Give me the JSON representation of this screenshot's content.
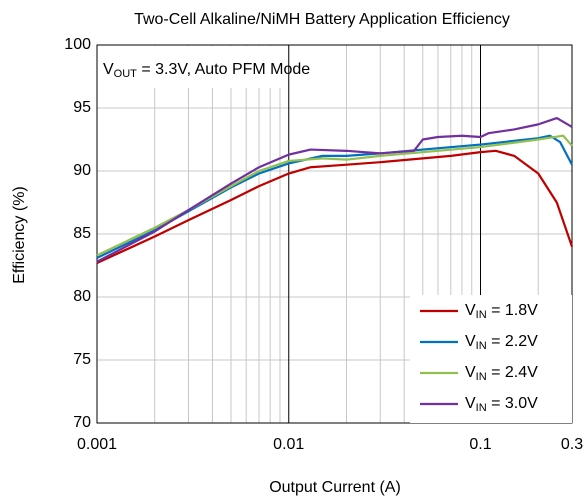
{
  "chart_data": {
    "type": "line",
    "title": "Two-Cell Alkaline/NiMH Battery Application Efficiency",
    "annotation": [
      {
        "text": "V"
      },
      {
        "text": "OUT",
        "sub": true
      },
      {
        "text": " = 3.3V, Auto PFM Mode"
      }
    ],
    "xlabel": "Output Current (A)",
    "ylabel": "Efficiency (%)",
    "xscale": "log",
    "xlim": [
      0.001,
      0.3
    ],
    "xticks": [
      0.001,
      0.01,
      0.1,
      0.3
    ],
    "ylim": [
      70,
      100
    ],
    "yticks": [
      70,
      75,
      80,
      85,
      90,
      95,
      100
    ],
    "grid": true,
    "legend": "lower right",
    "series": [
      {
        "name": [
          {
            "text": "V"
          },
          {
            "text": "IN",
            "sub": true
          },
          {
            "text": " = 1.8V"
          }
        ],
        "color": "#c00000",
        "x": [
          0.001,
          0.002,
          0.003,
          0.005,
          0.007,
          0.01,
          0.013,
          0.02,
          0.03,
          0.05,
          0.07,
          0.1,
          0.12,
          0.15,
          0.2,
          0.25,
          0.3
        ],
        "values": [
          82.7,
          84.8,
          86.1,
          87.7,
          88.8,
          89.8,
          90.3,
          90.5,
          90.7,
          91.0,
          91.2,
          91.5,
          91.6,
          91.2,
          89.8,
          87.5,
          84.0
        ]
      },
      {
        "name": [
          {
            "text": "V"
          },
          {
            "text": "IN",
            "sub": true
          },
          {
            "text": " = 2.2V"
          }
        ],
        "color": "#0070c0",
        "x": [
          0.001,
          0.002,
          0.003,
          0.005,
          0.007,
          0.01,
          0.015,
          0.02,
          0.03,
          0.05,
          0.1,
          0.2,
          0.23,
          0.26,
          0.3
        ],
        "values": [
          83.1,
          85.3,
          86.8,
          88.7,
          89.8,
          90.6,
          91.2,
          91.2,
          91.4,
          91.7,
          92.1,
          92.6,
          92.8,
          92.3,
          90.5
        ]
      },
      {
        "name": [
          {
            "text": "V"
          },
          {
            "text": "IN",
            "sub": true
          },
          {
            "text": " = 2.4V"
          }
        ],
        "color": "#92c050",
        "x": [
          0.001,
          0.002,
          0.003,
          0.005,
          0.007,
          0.01,
          0.015,
          0.02,
          0.03,
          0.05,
          0.1,
          0.2,
          0.27,
          0.3
        ],
        "values": [
          83.3,
          85.5,
          86.9,
          88.8,
          90.0,
          90.8,
          91.0,
          90.9,
          91.2,
          91.5,
          91.9,
          92.5,
          92.8,
          92.0
        ]
      },
      {
        "name": [
          {
            "text": "V"
          },
          {
            "text": "IN",
            "sub": true
          },
          {
            "text": " = 3.0V"
          }
        ],
        "color": "#7030a0",
        "x": [
          0.001,
          0.002,
          0.003,
          0.005,
          0.007,
          0.01,
          0.013,
          0.02,
          0.03,
          0.045,
          0.05,
          0.06,
          0.08,
          0.1,
          0.11,
          0.15,
          0.2,
          0.25,
          0.3
        ],
        "values": [
          82.8,
          85.2,
          86.9,
          89.0,
          90.3,
          91.3,
          91.7,
          91.6,
          91.4,
          91.6,
          92.5,
          92.7,
          92.8,
          92.7,
          93.0,
          93.3,
          93.7,
          94.2,
          93.5
        ]
      }
    ]
  }
}
